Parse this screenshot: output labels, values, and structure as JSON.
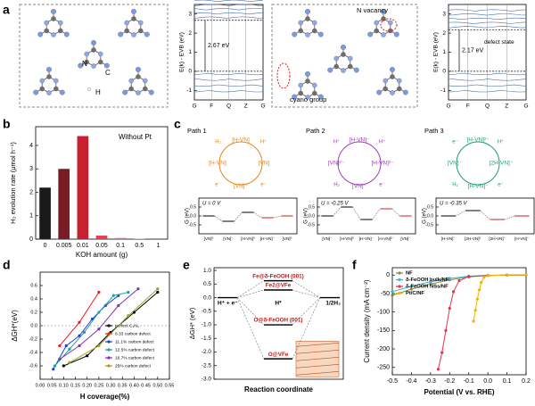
{
  "panel_labels": [
    "a",
    "b",
    "c",
    "d",
    "e",
    "f"
  ],
  "panel_a": {
    "structure_1": {
      "labels": [
        "N",
        "C",
        "H"
      ]
    },
    "structure_2": {
      "labels": [
        "cyano group",
        "N vacancy"
      ]
    },
    "band_1": {
      "ylabel": "E(k) - EVB (eV)",
      "ylim": [
        -1.5,
        3.5
      ],
      "yticks": [
        3,
        2,
        1,
        0,
        -1
      ],
      "kpoints": [
        "G",
        "F",
        "Q",
        "Z",
        "G"
      ],
      "gap": 2.67,
      "gap_label": "2.67 eV"
    },
    "band_2": {
      "ylabel": "E(k) - EVB (eV)",
      "ylim": [
        -1.5,
        3.5
      ],
      "yticks": [
        3,
        2,
        1,
        0,
        -1
      ],
      "kpoints": [
        "G",
        "F",
        "Q",
        "Z",
        "G"
      ],
      "gap": 2.17,
      "gap_label": "2.17 eV",
      "defect_label": "defect state"
    }
  },
  "panel_c": {
    "ylabel": "G (eV)",
    "ylim": [
      -1,
      1
    ],
    "yticks": [
      -0.5,
      {
        "value": 0,
        "label": "0.0"
      },
      0.5
    ],
    "paths": [
      {
        "title": "Path 1",
        "color": "#e8821e",
        "nodes": [
          "[H-VN]",
          "[VN]",
          "[VN]⁻",
          "[H-VN]"
        ],
        "species": [
          "H⁺",
          "e⁻",
          "e⁻",
          "H₂"
        ],
        "U_label": "U = 0 V",
        "states": [
          "[VN]⁰",
          "[VN]⁻",
          "[H-VN]⁰",
          "[H-VN]⁻",
          "[VN]⁰"
        ],
        "G": [
          0,
          -0.3,
          0.2,
          -0.1,
          0
        ]
      },
      {
        "title": "Path 2",
        "color": "#9b3fb5",
        "nodes": [
          "[H-VN]⁻",
          "[H-VN]²⁻",
          "[VN]⁻",
          "[VN]²⁻"
        ],
        "species": [
          "H⁺",
          "e⁻",
          "H₂",
          "H⁺"
        ],
        "U_label": "U = -0.25 V",
        "states": [
          "[VN]⁻",
          "[H-VN]⁰",
          "[H-VN]⁻",
          "[H-VN]²⁻",
          "[VN]⁻"
        ],
        "G": [
          0,
          0.5,
          -0.2,
          0.4,
          0
        ]
      },
      {
        "title": "Path 3",
        "color": "#1f9e6e",
        "nodes": [
          "[H-VN]²⁻",
          "[2H-VN]⁻",
          "[H-VN]⁻",
          "[VN]⁻"
        ],
        "species": [
          "H⁺",
          "e⁻",
          "H₂",
          "e⁻"
        ],
        "U_label": "U = -0.35 V",
        "states": [
          "[H-VN]⁻",
          "[2H-VN]⁰",
          "[2H-VN]⁻",
          "[H-VN]⁻"
        ],
        "G": [
          0,
          0.3,
          -0.2,
          0
        ]
      }
    ]
  },
  "chart_data": [
    {
      "type": "bar",
      "annotation": "Without Pt",
      "xlabel": "KOH amount (g)",
      "ylabel": "H₂ evolution rate (μmol h⁻¹)",
      "categories": [
        "0",
        "0.005",
        "0.01",
        "0.05",
        "0.1",
        "0.5",
        "1"
      ],
      "values": [
        2.2,
        3.0,
        4.4,
        0.15,
        0.05,
        0.02,
        0.0
      ],
      "colors": [
        "#1a1a1a",
        "#7a1c26",
        "#c8202e",
        "#e8404c",
        "#ee6670",
        "#f28c94",
        "#f5b0b6"
      ],
      "ylim": [
        0,
        4.8
      ],
      "yticks": [
        0,
        1,
        2,
        3,
        4
      ]
    },
    {
      "type": "line",
      "xlabel": "H coverage(%)",
      "ylabel": "ΔGH*(eV)",
      "xlim": [
        0,
        0.55
      ],
      "xticks": [
        {
          "value": 0,
          "label": "0.00"
        },
        {
          "value": 0.05,
          "label": "0.05"
        },
        {
          "value": 0.1,
          "label": "0.10"
        },
        {
          "value": 0.15,
          "label": "0.15"
        },
        {
          "value": 0.2,
          "label": "0.20"
        },
        {
          "value": 0.25,
          "label": "0.25"
        },
        {
          "value": 0.3,
          "label": "0.30"
        },
        {
          "value": 0.35,
          "label": "0.35"
        },
        {
          "value": 0.4,
          "label": "0.40"
        },
        {
          "value": 0.45,
          "label": "0.45"
        },
        {
          "value": 0.5,
          "label": "0.50"
        },
        {
          "value": 0.55,
          "label": "0.55"
        }
      ],
      "ylim": [
        -0.8,
        0.8
      ],
      "yticks": [
        -0.6,
        -0.4,
        -0.2,
        {
          "value": 0,
          "label": "0.0"
        },
        0.2,
        0.4,
        0.6
      ],
      "series": [
        {
          "name": "perfect C₃N₄",
          "color": "#000000",
          "x": [
            0.1,
            0.2,
            0.3,
            0.4,
            0.5
          ],
          "values": [
            -0.6,
            -0.45,
            -0.1,
            0.2,
            0.5
          ]
        },
        {
          "name": "8.33 carbon defect",
          "color": "#e02020",
          "x": [
            0.083,
            0.167,
            0.25
          ],
          "values": [
            -0.3,
            0.05,
            0.5
          ]
        },
        {
          "name": "11.1% carbon defect",
          "color": "#2040d0",
          "x": [
            0.056,
            0.111,
            0.167,
            0.222,
            0.278,
            0.333
          ],
          "values": [
            -0.65,
            -0.3,
            -0.15,
            0.1,
            0.3,
            0.45
          ]
        },
        {
          "name": "12.5% carbon defect",
          "color": "#20a0a0",
          "x": [
            0.0625,
            0.125,
            0.1875,
            0.25,
            0.3125,
            0.375
          ],
          "values": [
            -0.6,
            -0.35,
            -0.1,
            0.2,
            0.45,
            0.5
          ]
        },
        {
          "name": "16.7% carbon defect",
          "color": "#8030b0",
          "x": [
            0.083,
            0.167,
            0.25,
            0.333,
            0.417
          ],
          "values": [
            -0.5,
            -0.3,
            -0.05,
            0.3,
            0.55
          ]
        },
        {
          "name": "25% carbon defect",
          "color": "#a0a020",
          "x": [
            0.125,
            0.25,
            0.375,
            0.5
          ],
          "values": [
            -0.55,
            -0.3,
            0.15,
            0.55
          ]
        }
      ]
    },
    {
      "type": "energy",
      "xlabel": "Reaction coordinate",
      "ylabel": "ΔGH* (eV)",
      "ylim": [
        -3,
        1.1
      ],
      "yticks": [
        {
          "value": 1,
          "label": "1.0"
        },
        0.5,
        {
          "value": 0,
          "label": "0.0"
        },
        -0.5,
        {
          "value": -1,
          "label": "-1.0"
        },
        -1.5,
        {
          "value": -2,
          "label": "-2.0"
        },
        -2.5,
        {
          "value": -3,
          "label": "-3.0"
        }
      ],
      "initial": {
        "label": "H⁺ + e⁻",
        "value": 0
      },
      "final": {
        "label": "1/2H₂",
        "value": 0
      },
      "intermediate_label": "H*",
      "intermediates": [
        {
          "label": "Fe@δ-FeOOH (001)",
          "value": 0.62
        },
        {
          "label": "Fe2@VFe",
          "value": 0.28
        },
        {
          "label": "O@δ-FeOOH (001)",
          "value": -1.0
        },
        {
          "label": "O@VFe",
          "value": -2.25
        }
      ]
    },
    {
      "type": "line",
      "xlabel": "Potential (V vs. RHE)",
      "ylabel": "Current density (mA cm⁻²)",
      "xlim": [
        -0.5,
        0.2
      ],
      "xticks": [
        -0.5,
        -0.4,
        -0.3,
        -0.2,
        -0.1,
        {
          "value": 0,
          "label": "0.0"
        },
        0.1,
        0.2
      ],
      "ylim": [
        -270,
        20
      ],
      "yticks": [
        0,
        -50,
        -100,
        -150,
        -200,
        -250
      ],
      "series": [
        {
          "name": "NF",
          "color": "#8c8a3c",
          "x": [
            -0.5,
            -0.4,
            -0.3,
            -0.2,
            -0.1,
            0,
            0.1,
            0.2
          ],
          "values": [
            -55,
            -38,
            -24,
            -13,
            -5,
            -1,
            0,
            0
          ]
        },
        {
          "name": "δ-FeOOH bulk/NF",
          "color": "#35b5d8",
          "x": [
            -0.5,
            -0.4,
            -0.3,
            -0.2,
            -0.1,
            0,
            0.1,
            0.2
          ],
          "values": [
            -45,
            -30,
            -18,
            -9,
            -3,
            -0.5,
            0,
            0
          ]
        },
        {
          "name": "δ-FeOOH NSs/NF",
          "color": "#e8334a",
          "x": [
            -0.26,
            -0.24,
            -0.22,
            -0.2,
            -0.18,
            -0.15,
            -0.1,
            0,
            0.1,
            0.2
          ],
          "values": [
            -255,
            -210,
            -150,
            -90,
            -45,
            -15,
            -4,
            -1,
            0,
            0
          ]
        },
        {
          "name": "Pt/C/NF",
          "color": "#f0b400",
          "x": [
            -0.075,
            -0.065,
            -0.055,
            -0.045,
            -0.035,
            -0.02,
            0,
            0.1,
            0.2
          ],
          "values": [
            -125,
            -95,
            -65,
            -40,
            -20,
            -6,
            -1,
            0,
            0
          ]
        }
      ]
    }
  ]
}
